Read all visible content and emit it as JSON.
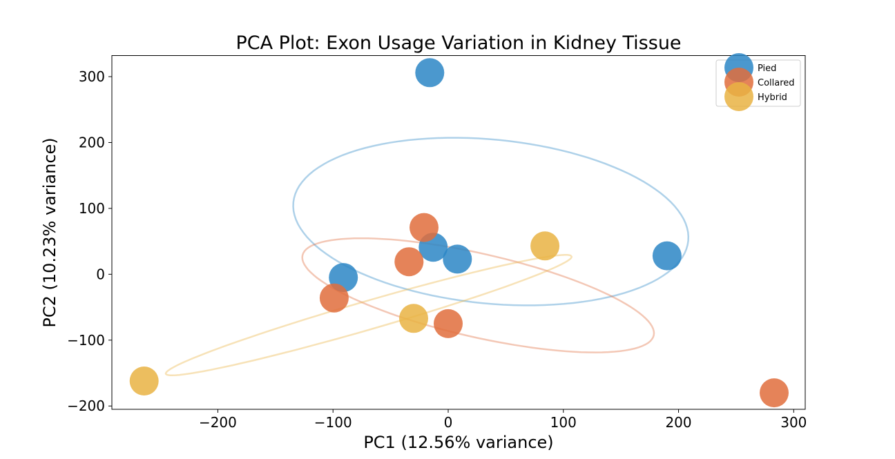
{
  "chart_data": {
    "type": "scatter",
    "title": "PCA Plot: Exon Usage Variation in Kidney Tissue",
    "xlabel": "PC1 (12.56% variance)",
    "ylabel": "PC2 (10.23% variance)",
    "xlim": [
      -292,
      310
    ],
    "ylim": [
      -205,
      332
    ],
    "xticks": [
      -200,
      -100,
      0,
      100,
      200,
      300
    ],
    "xtick_labels": [
      "−200",
      "−100",
      "0",
      "100",
      "200",
      "300"
    ],
    "yticks": [
      -200,
      -100,
      0,
      100,
      200,
      300
    ],
    "ytick_labels": [
      "−200",
      "−100",
      "0",
      "100",
      "200",
      "300"
    ],
    "grid": false,
    "legend_position": "top-right",
    "series": [
      {
        "name": "Pied",
        "color": "#2b86c5",
        "points": [
          [
            -16,
            306
          ],
          [
            -13,
            41
          ],
          [
            8,
            23
          ],
          [
            -91,
            -5
          ],
          [
            190,
            28
          ]
        ],
        "ellipse": {
          "center": [
            37,
            80
          ],
          "width": 350,
          "height": 245,
          "angle_deg": -16
        }
      },
      {
        "name": "Collared",
        "color": "#e06d3c",
        "points": [
          [
            -21,
            71
          ],
          [
            -34,
            19
          ],
          [
            -99,
            -36
          ],
          [
            0,
            -75
          ],
          [
            283,
            -180
          ]
        ],
        "ellipse": {
          "center": [
            26,
            -32
          ],
          "width": 330,
          "height": 120,
          "angle_deg": -24
        }
      },
      {
        "name": "Hybrid",
        "color": "#e9b343",
        "points": [
          [
            84,
            43
          ],
          [
            -30,
            -67
          ],
          [
            -264,
            -162
          ]
        ],
        "ellipse": {
          "center": [
            -69,
            -62
          ],
          "width": 395,
          "height": 40,
          "angle_deg": 27
        }
      }
    ]
  }
}
